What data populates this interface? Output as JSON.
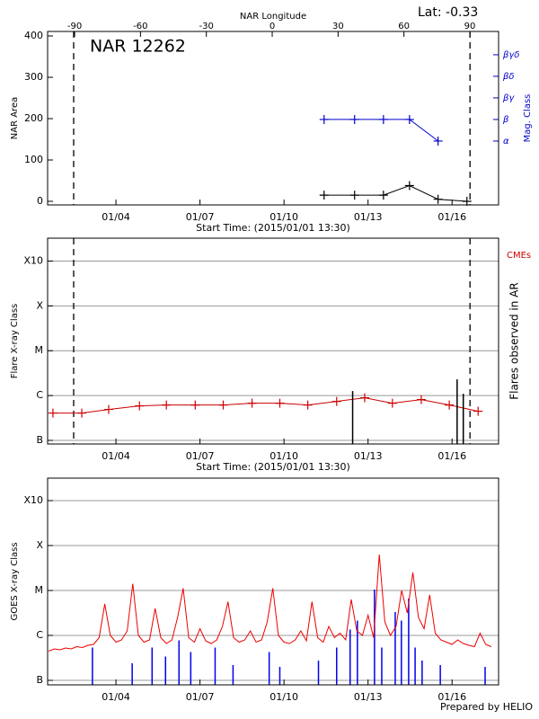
{
  "footer": "Prepared by HELIO",
  "chart_data": [
    {
      "type": "line",
      "title": "NAR 12262",
      "lat_label": "Lat:  -0.33",
      "xlabel": "Start Time: (2015/01/01 13:30)",
      "x2label": "NAR Longitude",
      "ylabel": "NAR Area",
      "y2label": "Mag. Class",
      "xlim": [
        1.56,
        17.66
      ],
      "xticks": [
        {
          "value": 4,
          "label": "01/04"
        },
        {
          "value": 7,
          "label": "01/07"
        },
        {
          "value": 10,
          "label": "01/10"
        },
        {
          "value": 13,
          "label": "01/13"
        },
        {
          "value": 16,
          "label": "01/16"
        }
      ],
      "x2lim": [
        -102.3,
        103.1
      ],
      "x2ticks": [
        -90,
        -60,
        -30,
        0,
        30,
        60,
        90
      ],
      "ylim": [
        -8.7,
        410.9
      ],
      "yticks": [
        0,
        100,
        200,
        300,
        400
      ],
      "y2lim": [
        -1.96,
        6.08
      ],
      "y2ticks": [
        {
          "value": 1,
          "label": "α"
        },
        {
          "value": 2,
          "label": "β"
        },
        {
          "value": 3,
          "label": "βγ"
        },
        {
          "value": 4,
          "label": "βδ"
        },
        {
          "value": 5,
          "label": "βγδ"
        }
      ],
      "y2color": "#0000cc",
      "vlines": [
        2.49,
        16.64
      ],
      "grid": false,
      "series": [
        {
          "color": "#000000",
          "style": "line",
          "marker": "plus",
          "x": [
            11.43,
            12.52,
            13.55,
            14.48,
            15.5,
            16.53
          ],
          "values": [
            15,
            15,
            15,
            38,
            5,
            0
          ]
        },
        {
          "color": "#0000cc",
          "style": "line",
          "marker": "plus",
          "axis": "y2",
          "x": [
            11.43,
            12.52,
            13.55,
            14.48,
            15.5
          ],
          "values": [
            2,
            2,
            2,
            2,
            1
          ]
        }
      ]
    },
    {
      "type": "line",
      "xlabel": "Start Time: (2015/01/01 13:30)",
      "ylabel": "Flare X-ray Class",
      "y2label": "Flares observed in AR",
      "cme_label": "CMEs",
      "xlim": [
        1.56,
        17.66
      ],
      "xticks": [
        {
          "value": 4,
          "label": "01/04"
        },
        {
          "value": 7,
          "label": "01/07"
        },
        {
          "value": 10,
          "label": "01/10"
        },
        {
          "value": 13,
          "label": "01/13"
        },
        {
          "value": 16,
          "label": "01/16"
        }
      ],
      "ylim": [
        -7.08,
        -2.49
      ],
      "yticks": [
        {
          "value": -7,
          "label": "B"
        },
        {
          "value": -6,
          "label": "C"
        },
        {
          "value": -5,
          "label": "M"
        },
        {
          "value": -4,
          "label": "X"
        },
        {
          "value": -3,
          "label": "X10"
        }
      ],
      "vlines": [
        2.49,
        16.64
      ],
      "grid": true,
      "series": [
        {
          "color": "#cc0000",
          "style": "line",
          "marker": "plus",
          "x": [
            1.75,
            2.78,
            3.74,
            4.84,
            5.8,
            6.83,
            7.83,
            8.86,
            9.85,
            10.85,
            11.88,
            12.88,
            13.87,
            14.9,
            15.9,
            16.93
          ],
          "values": [
            -6.39,
            -6.39,
            -6.31,
            -6.23,
            -6.21,
            -6.21,
            -6.21,
            -6.17,
            -6.17,
            -6.21,
            -6.13,
            -6.05,
            -6.17,
            -6.09,
            -6.21,
            -6.35
          ]
        },
        {
          "color": "#000000",
          "style": "spike",
          "x": [
            12.45,
            16.18,
            16.4
          ],
          "values": [
            -5.9,
            -5.64,
            -5.96
          ]
        }
      ]
    },
    {
      "type": "line",
      "ylabel": "GOES X-ray Class",
      "xlim": [
        1.56,
        17.66
      ],
      "xticks": [
        {
          "value": 4,
          "label": "01/04"
        },
        {
          "value": 7,
          "label": "01/07"
        },
        {
          "value": 10,
          "label": "01/10"
        },
        {
          "value": 13,
          "label": "01/13"
        },
        {
          "value": 16,
          "label": "01/16"
        }
      ],
      "ylim": [
        -7.1,
        -2.5
      ],
      "yticks": [
        {
          "value": -7,
          "label": "B"
        },
        {
          "value": -6,
          "label": "C"
        },
        {
          "value": -5,
          "label": "M"
        },
        {
          "value": -4,
          "label": "X"
        },
        {
          "value": -3,
          "label": "X10"
        }
      ],
      "grid": true,
      "series": [
        {
          "color": "#0000ee",
          "style": "spike",
          "x": [
            3.16,
            4.58,
            5.29,
            5.77,
            6.25,
            6.67,
            7.54,
            8.18,
            9.47,
            9.85,
            11.23,
            11.88,
            12.36,
            12.62,
            13.23,
            13.49,
            13.97,
            14.19,
            14.45,
            14.68,
            14.93,
            15.58,
            17.18
          ],
          "values": [
            -6.27,
            -6.62,
            -6.27,
            -6.47,
            -6.11,
            -6.37,
            -6.27,
            -6.66,
            -6.37,
            -6.7,
            -6.56,
            -6.27,
            -5.87,
            -5.67,
            -4.98,
            -6.27,
            -5.48,
            -5.67,
            -5.18,
            -6.27,
            -6.56,
            -6.66,
            -6.7
          ]
        },
        {
          "color": "#ee0000",
          "style": "line",
          "x": [
            1.6,
            1.8,
            2.0,
            2.2,
            2.4,
            2.6,
            2.8,
            3.0,
            3.2,
            3.4,
            3.6,
            3.8,
            4.0,
            4.2,
            4.4,
            4.6,
            4.8,
            5.0,
            5.2,
            5.4,
            5.6,
            5.8,
            6.0,
            6.2,
            6.4,
            6.6,
            6.8,
            7.0,
            7.2,
            7.4,
            7.6,
            7.8,
            8.0,
            8.2,
            8.4,
            8.6,
            8.8,
            9.0,
            9.2,
            9.4,
            9.6,
            9.8,
            10.0,
            10.2,
            10.4,
            10.6,
            10.8,
            11.0,
            11.2,
            11.4,
            11.6,
            11.8,
            12.0,
            12.2,
            12.4,
            12.6,
            12.8,
            13.0,
            13.2,
            13.4,
            13.6,
            13.8,
            14.0,
            14.2,
            14.4,
            14.6,
            14.8,
            15.0,
            15.2,
            15.4,
            15.6,
            15.8,
            16.0,
            16.2,
            16.4,
            16.6,
            16.8,
            17.0,
            17.2,
            17.4
          ],
          "values": [
            -6.35,
            -6.3,
            -6.32,
            -6.28,
            -6.3,
            -6.25,
            -6.27,
            -6.22,
            -6.2,
            -6.05,
            -5.3,
            -6.0,
            -6.15,
            -6.1,
            -5.9,
            -4.85,
            -6.0,
            -6.15,
            -6.1,
            -5.4,
            -6.05,
            -6.18,
            -6.1,
            -5.6,
            -4.95,
            -6.05,
            -6.15,
            -5.85,
            -6.12,
            -6.18,
            -6.1,
            -5.8,
            -5.25,
            -6.05,
            -6.15,
            -6.1,
            -5.9,
            -6.15,
            -6.1,
            -5.7,
            -4.95,
            -6.0,
            -6.15,
            -6.18,
            -6.1,
            -5.9,
            -6.12,
            -5.25,
            -6.05,
            -6.15,
            -5.8,
            -6.05,
            -5.95,
            -6.1,
            -5.2,
            -5.9,
            -6.0,
            -5.55,
            -6.05,
            -4.2,
            -5.7,
            -6.0,
            -5.8,
            -5.0,
            -5.5,
            -4.6,
            -5.6,
            -5.85,
            -5.1,
            -5.95,
            -6.1,
            -6.15,
            -6.2,
            -6.1,
            -6.18,
            -6.22,
            -6.25,
            -5.95,
            -6.2,
            -6.25
          ]
        }
      ]
    }
  ]
}
